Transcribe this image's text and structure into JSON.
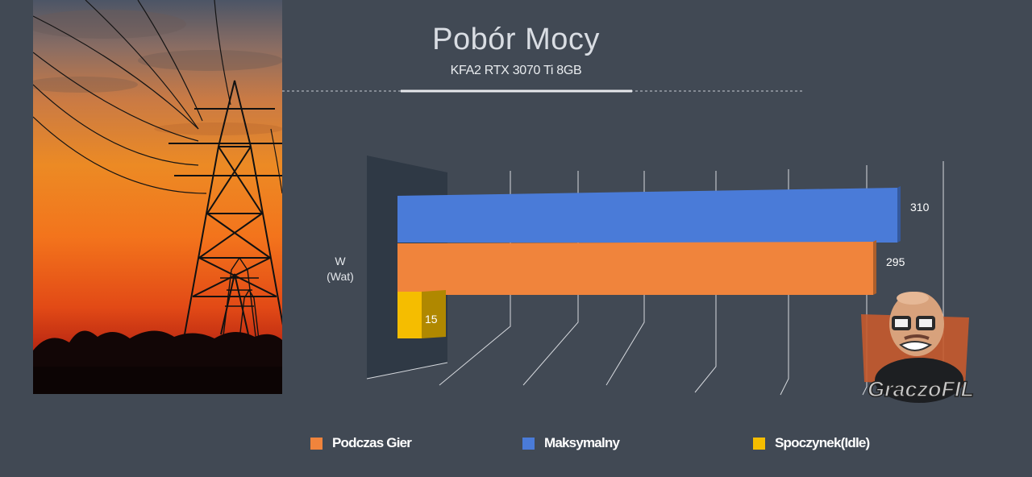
{
  "chart_data": {
    "type": "bar",
    "orientation": "horizontal",
    "style": "3d",
    "title": "Pobór Mocy",
    "subtitle": "KFA2 RTX 3070 Ti 8GB",
    "ylabel_line1": "W",
    "ylabel_line2": "(Wat)",
    "xlim": [
      0,
      320
    ],
    "series": [
      {
        "name": "Maksymalny",
        "value": 310,
        "label": "310",
        "color": "#4a7bd8"
      },
      {
        "name": "Podczas Gier",
        "value": 295,
        "label": "295",
        "color": "#f0843c"
      },
      {
        "name": "Spoczynek(Idle)",
        "value": 15,
        "label": "15",
        "color": "#f5bd00"
      }
    ],
    "grid": true,
    "legend_position": "bottom"
  },
  "legend": [
    {
      "label": "Podczas Gier",
      "color": "#f0843c"
    },
    {
      "label": "Maksymalny",
      "color": "#4a7bd8"
    },
    {
      "label": "Spoczynek(Idle)",
      "color": "#f5bd00"
    }
  ],
  "watermark": "GraczoFIL"
}
